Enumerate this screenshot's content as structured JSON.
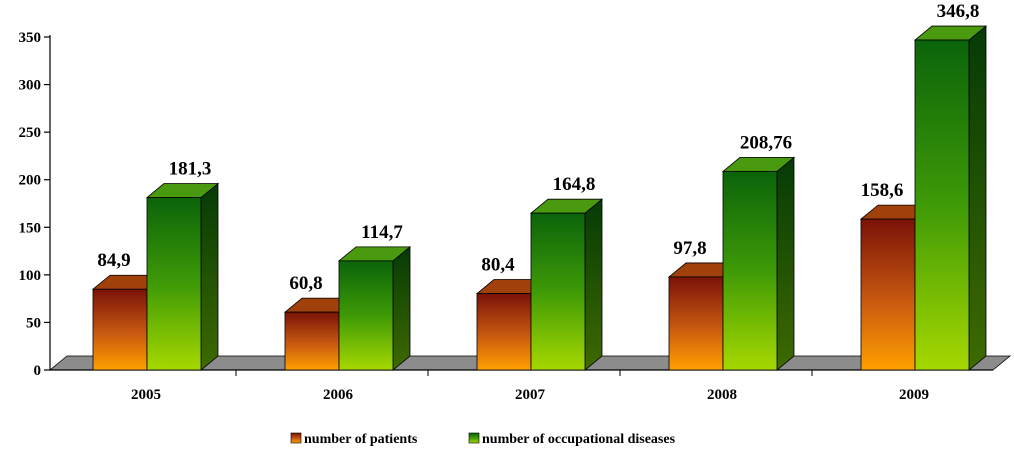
{
  "chart_data": {
    "type": "bar",
    "title": "",
    "xlabel": "",
    "ylabel": "",
    "categories": [
      "2005",
      "2006",
      "2007",
      "2008",
      "2009"
    ],
    "series": [
      {
        "name": "number of patients",
        "values": [
          84.9,
          60.8,
          80.4,
          97.8,
          158.6
        ],
        "labels": [
          "84,9",
          "60,8",
          "80,4",
          "97,8",
          "158,6"
        ]
      },
      {
        "name": "number of occupational diseases",
        "values": [
          181.3,
          114.7,
          164.8,
          208.76,
          346.8
        ],
        "labels": [
          "181,3",
          "114,7",
          "164,8",
          "208,76",
          "346,8"
        ]
      }
    ],
    "yticks": [
      "0",
      "50",
      "100",
      "150",
      "200",
      "250",
      "300",
      "350"
    ],
    "ylim": [
      0,
      350
    ],
    "style": "3d-column",
    "legend_position": "bottom",
    "grid": false,
    "colors": {
      "patients_top": "#8a1a0a",
      "patients_bottom": "#ff9a00",
      "diseases_top": "#0e6e0e",
      "diseases_bottom": "#9ad000",
      "floor": "#8c8c8c"
    }
  }
}
